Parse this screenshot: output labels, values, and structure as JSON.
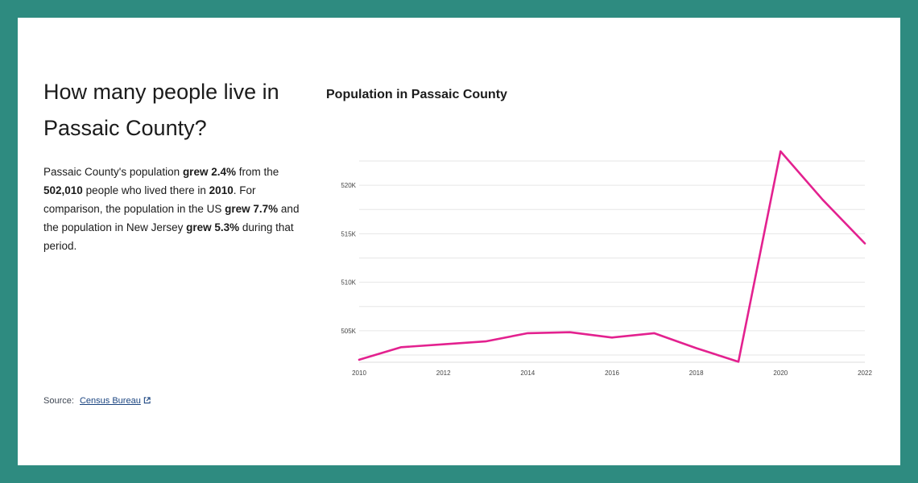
{
  "heading": "How many people live in Passaic County?",
  "summary": {
    "t1": "Passaic County's population ",
    "b1": "grew 2.4%",
    "t2": " from the ",
    "b2": "502,010",
    "t3": " people who lived there in ",
    "b3": "2010",
    "t4": ". For comparison, the population in the US ",
    "b4": "grew 7.7%",
    "t5": " and the population in New Jersey ",
    "b5": "grew 5.3%",
    "t6": " during that period."
  },
  "source": {
    "label": "Source:",
    "link_text": "Census Bureau",
    "link_icon": "external-link-icon"
  },
  "chart_data": {
    "type": "line",
    "title": "Population in Passaic County",
    "xlabel": "",
    "ylabel": "",
    "x": [
      2010,
      2011,
      2012,
      2013,
      2014,
      2015,
      2016,
      2017,
      2018,
      2019,
      2020,
      2021,
      2022
    ],
    "series": [
      {
        "values": [
          502010,
          503300,
          503600,
          503900,
          504750,
          504850,
          504300,
          504750,
          503200,
          501800,
          523500,
          518500,
          514000
        ],
        "color": "#e3218f"
      }
    ],
    "xlim": [
      2010,
      2022
    ],
    "ylim": [
      501750,
      523000
    ],
    "x_ticks": [
      2010,
      2012,
      2014,
      2016,
      2018,
      2020,
      2022
    ],
    "y_ticks": [
      505000,
      510000,
      515000,
      520000
    ],
    "y_tick_labels": [
      "505K",
      "510K",
      "515K",
      "520K"
    ],
    "grid": true,
    "legend": "none"
  }
}
